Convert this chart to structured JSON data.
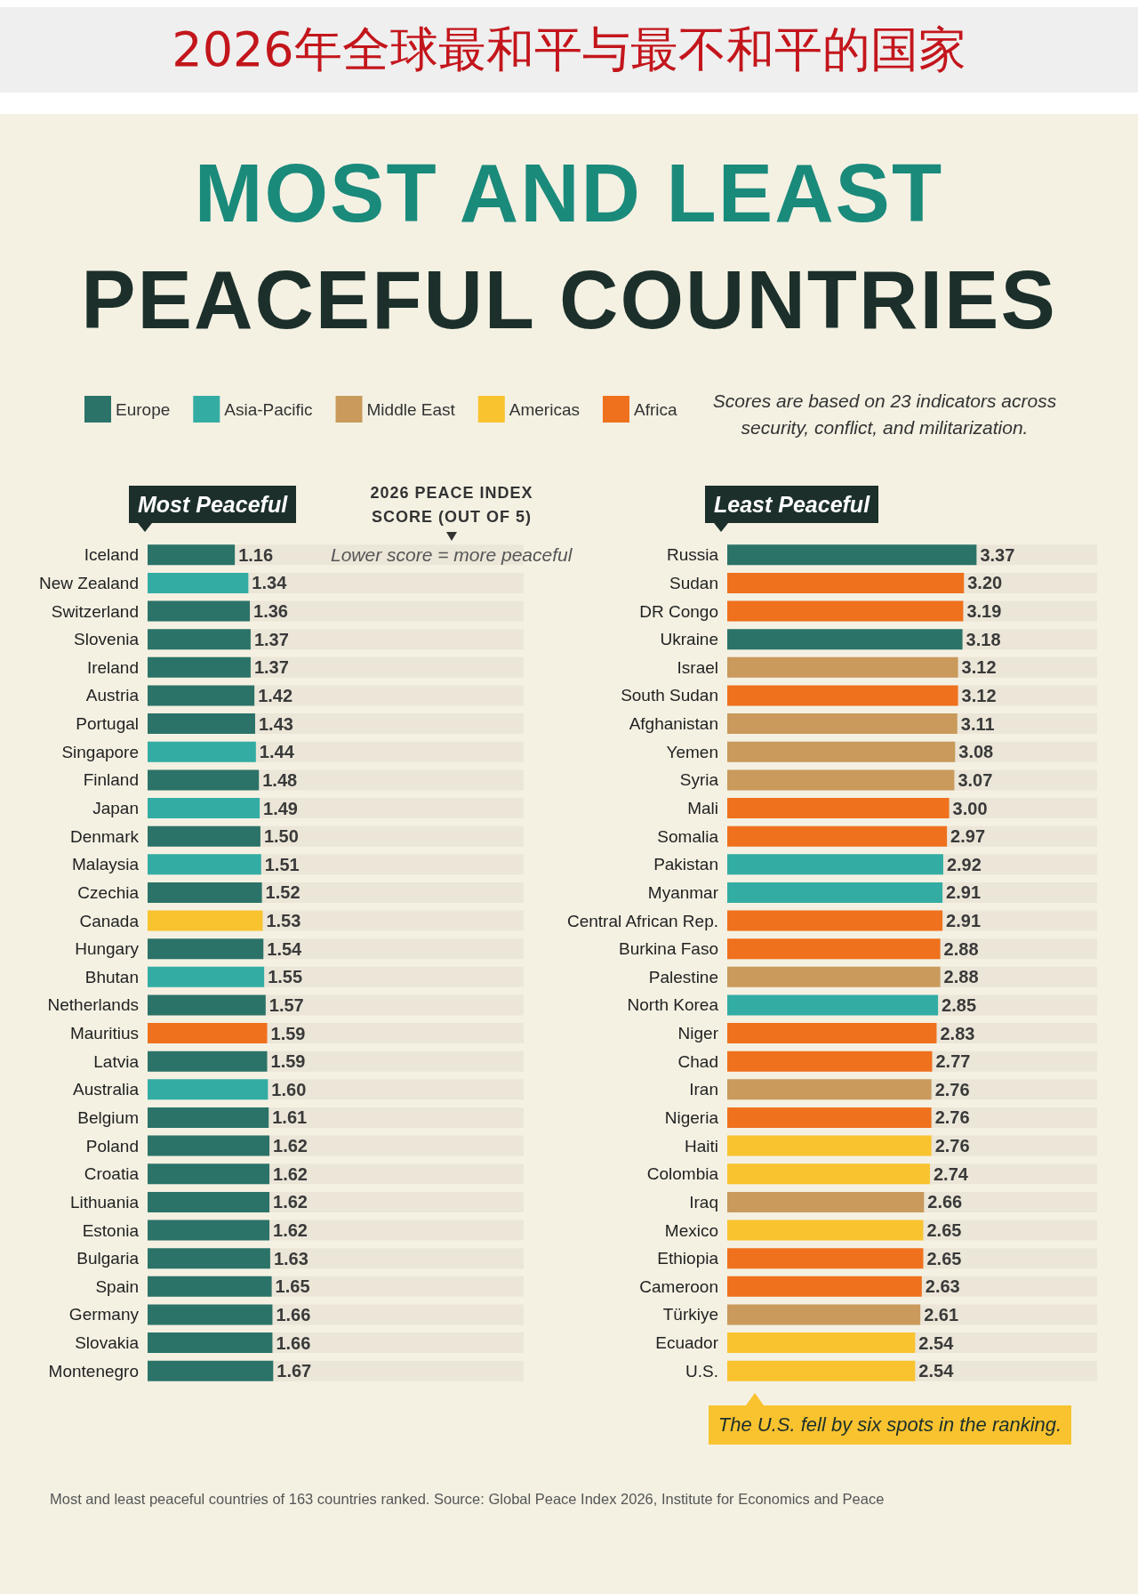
{
  "chart_data": [
    {
      "type": "other",
      "title": "2026年全球最和平与最不和平的国家",
      "subtitle": "MOST AND LEAST PEACEFUL COUNTRIES"
    },
    {
      "type": "bar",
      "title": "Most Peaceful",
      "xlabel": "2026 PEACE INDEX SCORE (OUT OF 5)",
      "annotations": [
        "Lower score = more peaceful"
      ],
      "orientation": "horizontal",
      "stacked": true,
      "xlim": [
        0,
        5
      ],
      "tick_labels": "y",
      "categories": [
        "Iceland",
        "New Zealand",
        "Switzerland",
        "Slovenia",
        "Ireland",
        "Austria",
        "Portugal",
        "Singapore",
        "Finland",
        "Japan",
        "Denmark",
        "Malaysia",
        "Czechia",
        "Canada",
        "Hungary",
        "Bhutan",
        "Netherlands",
        "Mauritius",
        "Latvia",
        "Australia",
        "Belgium",
        "Poland",
        "Croatia",
        "Lithuania",
        "Estonia",
        "Bulgaria",
        "Spain",
        "Germany",
        "Slovakia",
        "Montenegro"
      ],
      "series": [
        {
          "color": "#2b7368",
          "values": [
            1.16,
            null,
            1.36,
            1.37,
            1.37,
            1.42,
            1.43,
            null,
            1.48,
            null,
            1.5,
            null,
            1.52,
            null,
            1.54,
            null,
            1.57,
            null,
            1.59,
            null,
            1.61,
            1.62,
            1.62,
            1.62,
            1.62,
            1.63,
            1.65,
            1.66,
            1.66,
            1.67
          ],
          "value_labels": [
            "1.16",
            null,
            "1.36",
            "1.37",
            "1.37",
            "1.42",
            "1.43",
            null,
            "1.48",
            null,
            "1.50",
            null,
            "1.52",
            null,
            "1.54",
            null,
            "1.57",
            null,
            "1.59",
            null,
            "1.61",
            "1.62",
            "1.62",
            "1.62",
            "1.62",
            "1.63",
            "1.65",
            "1.66",
            "1.66",
            "1.67"
          ]
        },
        {
          "color": "#33ada4",
          "values": [
            null,
            1.34,
            null,
            null,
            null,
            null,
            null,
            1.44,
            null,
            1.49,
            null,
            1.51,
            null,
            null,
            null,
            1.55,
            null,
            null,
            null,
            1.6,
            null,
            null,
            null,
            null,
            null,
            null,
            null,
            null,
            null,
            null
          ],
          "value_labels": [
            null,
            "1.34",
            null,
            null,
            null,
            null,
            null,
            "1.44",
            null,
            "1.49",
            null,
            "1.51",
            null,
            null,
            null,
            "1.55",
            null,
            null,
            null,
            "1.60",
            null,
            null,
            null,
            null,
            null,
            null,
            null,
            null,
            null,
            null
          ]
        },
        {
          "color": "#f9c32f",
          "values": [
            null,
            null,
            null,
            null,
            null,
            null,
            null,
            null,
            null,
            null,
            null,
            null,
            null,
            1.53,
            null,
            null,
            null,
            null,
            null,
            null,
            null,
            null,
            null,
            null,
            null,
            null,
            null,
            null,
            null,
            null
          ],
          "value_labels": [
            null,
            null,
            null,
            null,
            null,
            null,
            null,
            null,
            null,
            null,
            null,
            null,
            null,
            "1.53",
            null,
            null,
            null,
            null,
            null,
            null,
            null,
            null,
            null,
            null,
            null,
            null,
            null,
            null,
            null,
            null
          ]
        },
        {
          "color": "#ef711d",
          "values": [
            null,
            null,
            null,
            null,
            null,
            null,
            null,
            null,
            null,
            null,
            null,
            null,
            null,
            null,
            null,
            null,
            null,
            1.59,
            null,
            null,
            null,
            null,
            null,
            null,
            null,
            null,
            null,
            null,
            null,
            null
          ],
          "value_labels": [
            null,
            null,
            null,
            null,
            null,
            null,
            null,
            null,
            null,
            null,
            null,
            null,
            null,
            null,
            null,
            null,
            null,
            "1.59",
            null,
            null,
            null,
            null,
            null,
            null,
            null,
            null,
            null,
            null,
            null,
            null
          ]
        }
      ]
    },
    {
      "type": "bar",
      "title": "Least Peaceful",
      "legend": "top left",
      "annotations": [
        "Scores are based on 23 indicators across security, conflict, and militarization.",
        "The U.S. fell by six spots in the ranking.",
        "Most and least peaceful countries of 163 countries ranked. Source: Global Peace Index 2026, Institute for Economics and Peace"
      ],
      "orientation": "horizontal",
      "stacked": true,
      "xlim": [
        0,
        5
      ],
      "tick_labels": "y",
      "categories": [
        "Russia",
        "Sudan",
        "DR Congo",
        "Ukraine",
        "Israel",
        "South Sudan",
        "Afghanistan",
        "Yemen",
        "Syria",
        "Mali",
        "Somalia",
        "Pakistan",
        "Myanmar",
        "Central African Rep.",
        "Burkina Faso",
        "Palestine",
        "North Korea",
        "Niger",
        "Chad",
        "Iran",
        "Nigeria",
        "Haiti",
        "Colombia",
        "Iraq",
        "Mexico",
        "Ethiopia",
        "Cameroon",
        "Türkiye",
        "Ecuador",
        "U.S."
      ],
      "series": [
        {
          "name": "Europe",
          "color": "#2b7368",
          "values": [
            3.37,
            null,
            null,
            3.18,
            null,
            null,
            null,
            null,
            null,
            null,
            null,
            null,
            null,
            null,
            null,
            null,
            null,
            null,
            null,
            null,
            null,
            null,
            null,
            null,
            null,
            null,
            null,
            null,
            null,
            null
          ],
          "value_labels": [
            "3.37",
            null,
            null,
            "3.18",
            null,
            null,
            null,
            null,
            null,
            null,
            null,
            null,
            null,
            null,
            null,
            null,
            null,
            null,
            null,
            null,
            null,
            null,
            null,
            null,
            null,
            null,
            null,
            null,
            null,
            null
          ]
        },
        {
          "name": "Asia-Pacific",
          "color": "#33ada4",
          "values": [
            null,
            null,
            null,
            null,
            null,
            null,
            null,
            null,
            null,
            null,
            null,
            2.92,
            2.91,
            null,
            null,
            null,
            2.85,
            null,
            null,
            null,
            null,
            null,
            null,
            null,
            null,
            null,
            null,
            null,
            null,
            null
          ],
          "value_labels": [
            null,
            null,
            null,
            null,
            null,
            null,
            null,
            null,
            null,
            null,
            null,
            "2.92",
            "2.91",
            null,
            null,
            null,
            "2.85",
            null,
            null,
            null,
            null,
            null,
            null,
            null,
            null,
            null,
            null,
            null,
            null,
            null
          ]
        },
        {
          "name": "Middle East",
          "color": "#c99a5b",
          "values": [
            null,
            null,
            null,
            null,
            3.12,
            null,
            3.11,
            3.08,
            3.07,
            null,
            null,
            null,
            null,
            null,
            null,
            2.88,
            null,
            null,
            null,
            2.76,
            null,
            null,
            null,
            2.66,
            null,
            null,
            null,
            2.61,
            null,
            null
          ],
          "value_labels": [
            null,
            null,
            null,
            null,
            "3.12",
            null,
            "3.11",
            "3.08",
            "3.07",
            null,
            null,
            null,
            null,
            null,
            null,
            "2.88",
            null,
            null,
            null,
            "2.76",
            null,
            null,
            null,
            "2.66",
            null,
            null,
            null,
            "2.61",
            null,
            null
          ]
        },
        {
          "name": "Americas",
          "color": "#f9c32f",
          "values": [
            null,
            null,
            null,
            null,
            null,
            null,
            null,
            null,
            null,
            null,
            null,
            null,
            null,
            null,
            null,
            null,
            null,
            null,
            null,
            null,
            null,
            2.76,
            2.74,
            null,
            2.65,
            null,
            null,
            null,
            2.54,
            2.54
          ],
          "value_labels": [
            null,
            null,
            null,
            null,
            null,
            null,
            null,
            null,
            null,
            null,
            null,
            null,
            null,
            null,
            null,
            null,
            null,
            null,
            null,
            null,
            null,
            "2.76",
            "2.74",
            null,
            "2.65",
            null,
            null,
            null,
            "2.54",
            "2.54"
          ]
        },
        {
          "name": "Africa",
          "color": "#ef711d",
          "values": [
            null,
            3.2,
            3.19,
            null,
            null,
            3.12,
            null,
            null,
            null,
            3.0,
            2.97,
            null,
            null,
            2.91,
            2.88,
            null,
            null,
            2.83,
            2.77,
            null,
            2.76,
            null,
            null,
            null,
            null,
            2.65,
            2.63,
            null,
            null,
            null
          ],
          "value_labels": [
            null,
            "3.20",
            "3.19",
            null,
            null,
            "3.12",
            null,
            null,
            null,
            "3.00",
            "2.97",
            null,
            null,
            "2.91",
            "2.88",
            null,
            null,
            "2.83",
            "2.77",
            null,
            "2.76",
            null,
            null,
            null,
            null,
            "2.65",
            "2.63",
            null,
            null,
            null
          ]
        }
      ]
    }
  ]
}
